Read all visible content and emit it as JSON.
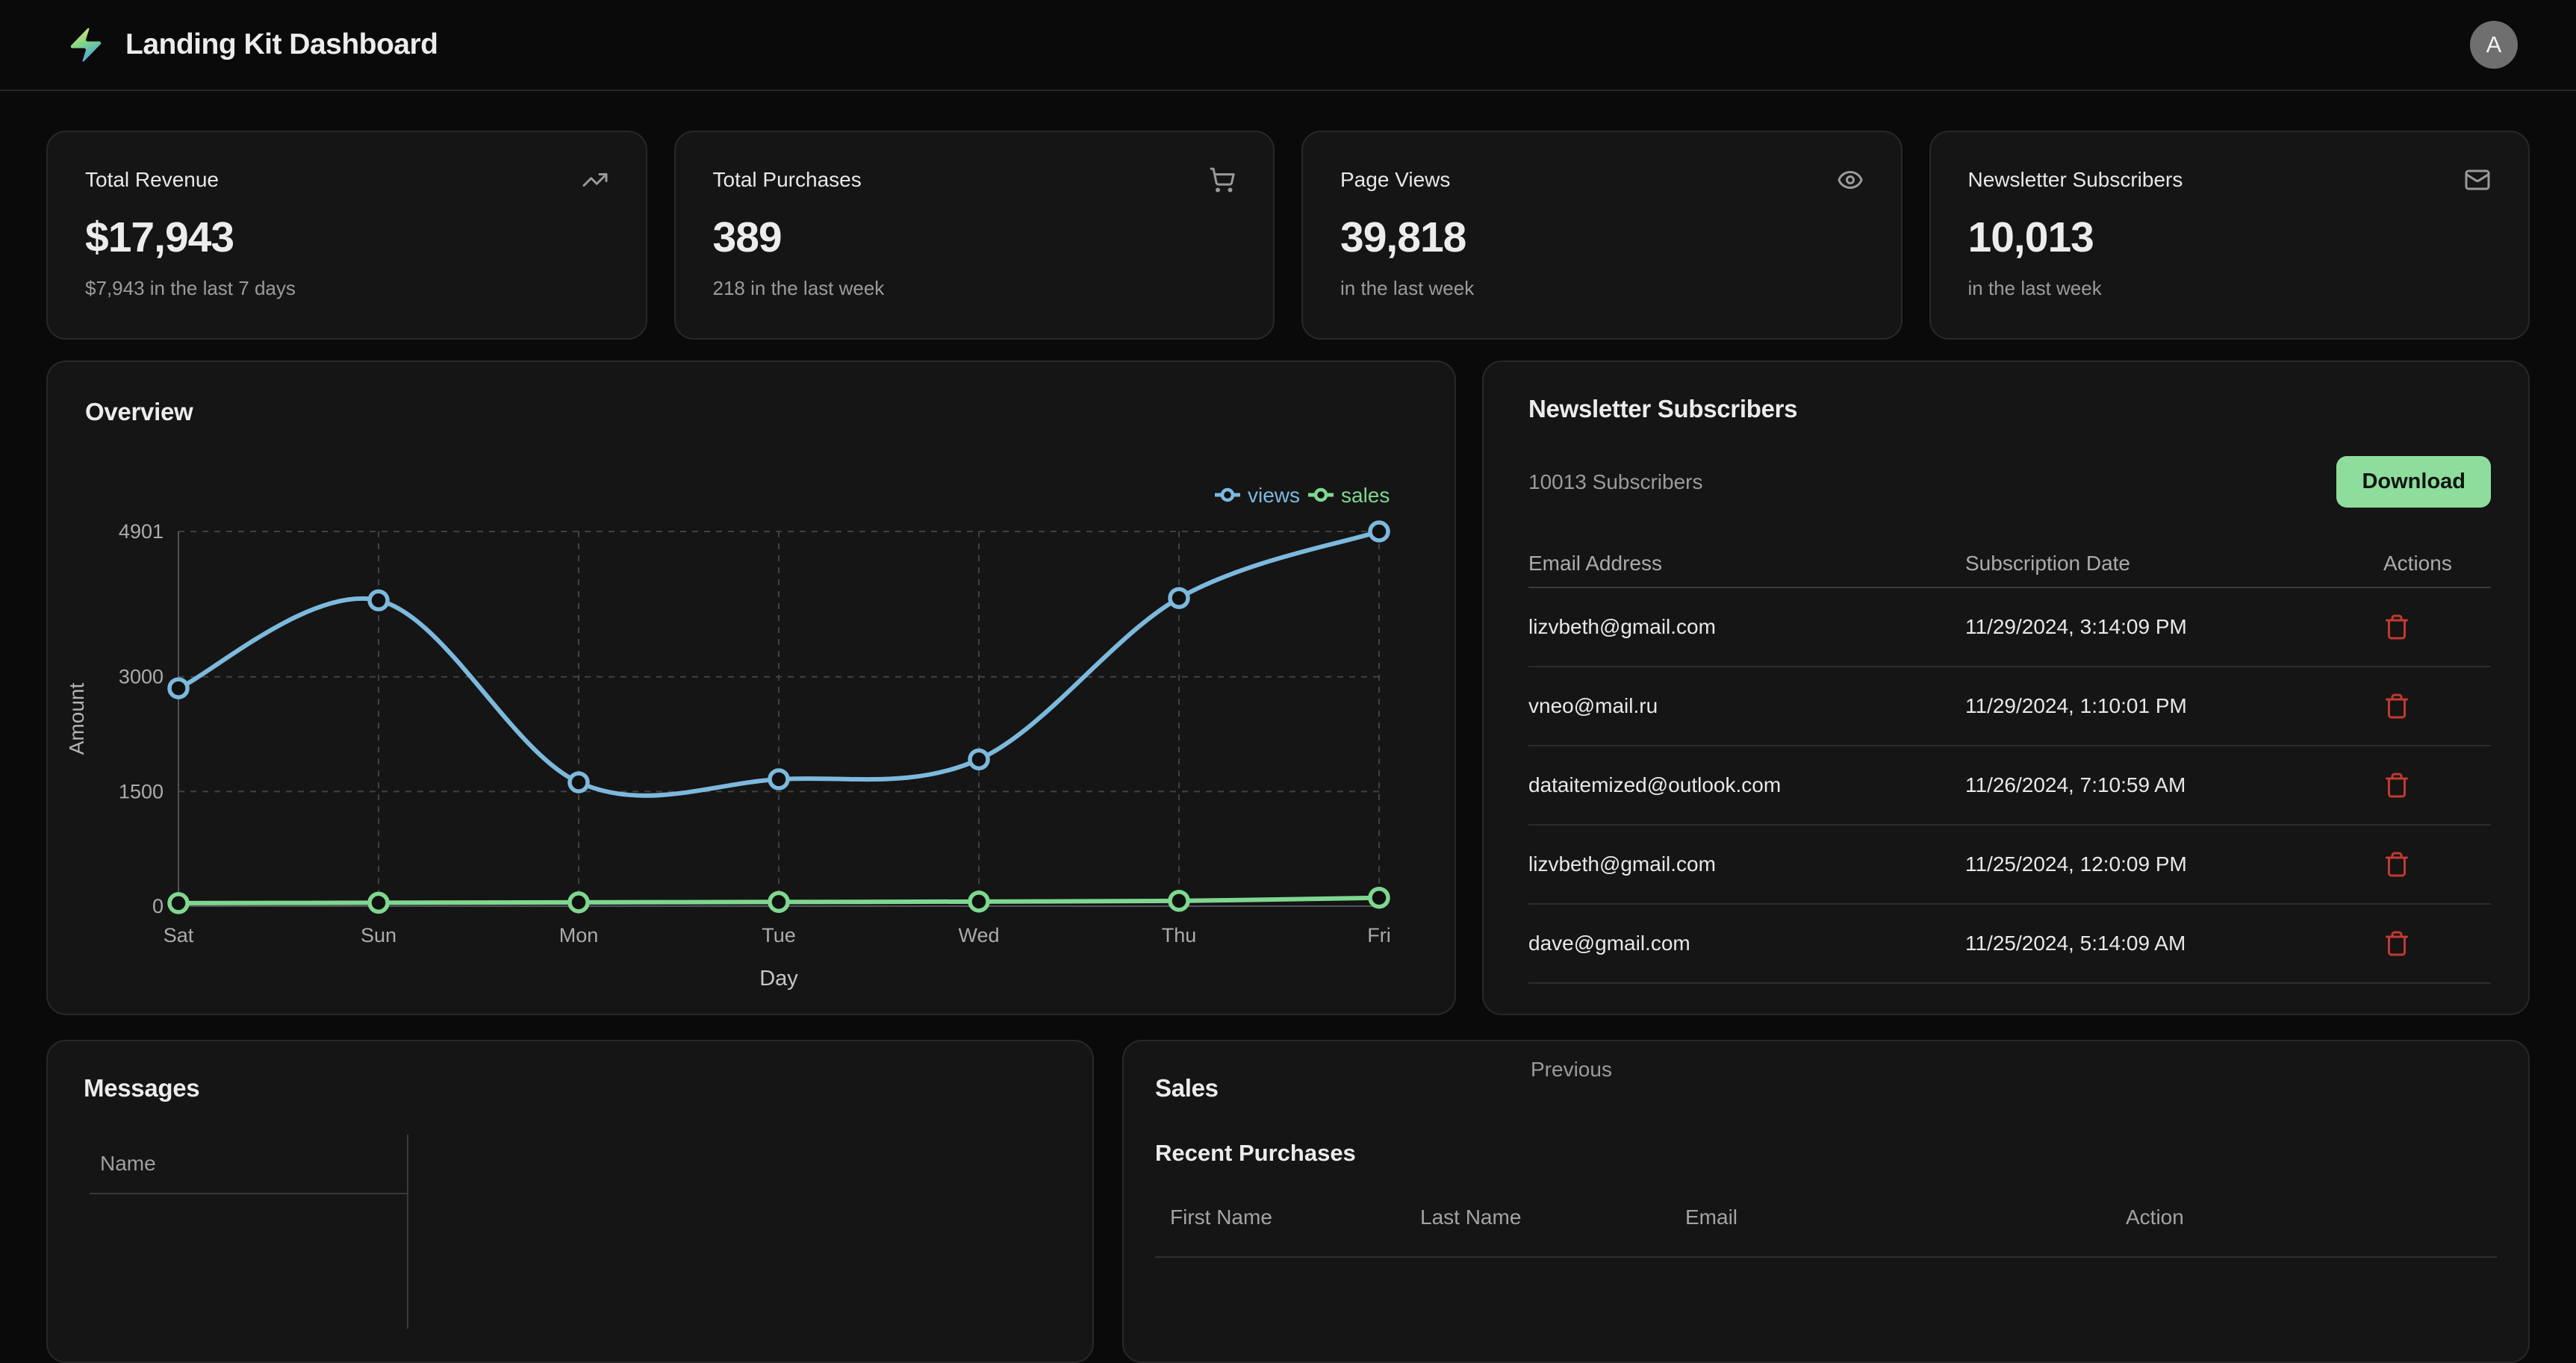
{
  "header": {
    "title": "Landing Kit Dashboard",
    "avatar_initial": "A"
  },
  "stat_cards": [
    {
      "title": "Total Revenue",
      "icon": "trending-up-icon",
      "value": "$17,943",
      "subtitle": "$7,943 in the last 7 days"
    },
    {
      "title": "Total Purchases",
      "icon": "shopping-cart-icon",
      "value": "389",
      "subtitle": "218 in the last week"
    },
    {
      "title": "Page Views",
      "icon": "eye-icon",
      "value": "39,818",
      "subtitle": "in the last week"
    },
    {
      "title": "Newsletter Subscribers",
      "icon": "mail-icon",
      "value": "10,013",
      "subtitle": "in the last week"
    }
  ],
  "overview": {
    "title": "Overview"
  },
  "chart_data": {
    "type": "line",
    "x": [
      "Sat",
      "Sun",
      "Mon",
      "Tue",
      "Wed",
      "Thu",
      "Fri"
    ],
    "series": [
      {
        "name": "views",
        "color": "#7cb9dd",
        "values": [
          2850,
          4000,
          1620,
          1660,
          1920,
          4030,
          4901
        ]
      },
      {
        "name": "sales",
        "color": "#7fd790",
        "values": [
          40,
          45,
          50,
          55,
          60,
          70,
          110
        ]
      }
    ],
    "xlabel": "Day",
    "ylabel": "Amount",
    "yticks": [
      0,
      1500,
      3000,
      4901
    ],
    "ylim": [
      0,
      4901
    ],
    "legend_position": "top-right",
    "grid": "dashed"
  },
  "newsletter": {
    "title": "Newsletter Subscribers",
    "count_label": "10013 Subscribers",
    "download_label": "Download",
    "columns": [
      "Email Address",
      "Subscription Date",
      "Actions"
    ],
    "rows": [
      {
        "email": "lizvbeth@gmail.com",
        "date": "11/29/2024, 3:14:09 PM"
      },
      {
        "email": "vneo@mail.ru",
        "date": "11/29/2024, 1:10:01 PM"
      },
      {
        "email": "dataitemized@outlook.com",
        "date": "11/26/2024, 7:10:59 AM"
      },
      {
        "email": "lizvbeth@gmail.com",
        "date": "11/25/2024, 12:0:09 PM"
      },
      {
        "email": "dave@gmail.com",
        "date": "11/25/2024, 5:14:09 AM"
      }
    ],
    "pagination": {
      "previous_label": "Previous"
    }
  },
  "messages": {
    "title": "Messages",
    "columns": [
      "Name"
    ]
  },
  "sales": {
    "title": "Sales",
    "subtitle": "Recent Purchases",
    "columns": [
      "First Name",
      "Last Name",
      "Email",
      "Action"
    ]
  },
  "colors": {
    "accent_green": "#8edd9d",
    "danger_red": "#c23a31",
    "views_blue": "#7cb9dd",
    "sales_green": "#7fd790"
  }
}
